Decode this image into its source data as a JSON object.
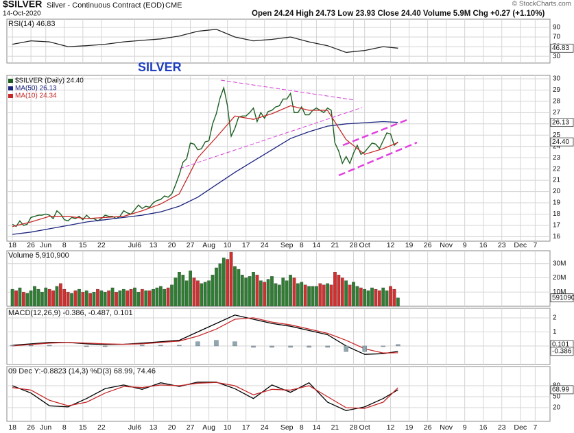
{
  "header": {
    "symbol": "$SILVER",
    "description": "Silver - Continuous Contract (EOD)",
    "exchange": "CME",
    "date": "14-Oct-2020",
    "quote": "Open 24.24  High 24.73  Low 23.93  Close 24.40  Volume 5.9M  Chg +0.27 (+1.10%)",
    "source": "© StockCharts.com"
  },
  "chart_data": [
    {
      "type": "line",
      "title": "RSI(14) 46.83",
      "ylim": [
        16,
        107
      ],
      "yticks": [
        30,
        50,
        70,
        90
      ],
      "series": [
        {
          "color": "#222222",
          "x": [
            0,
            5,
            10,
            15,
            20,
            25,
            30,
            35,
            40,
            45,
            50,
            55,
            60,
            65,
            70,
            75,
            80,
            85,
            90,
            95,
            100,
            104
          ],
          "values": [
            55,
            62,
            60,
            50,
            52,
            55,
            60,
            63,
            66,
            72,
            82,
            86,
            70,
            62,
            65,
            70,
            60,
            52,
            38,
            42,
            50,
            46.83
          ]
        }
      ],
      "tags": [
        {
          "value": 46.83,
          "label": "46.83"
        }
      ]
    },
    {
      "type": "line",
      "annotation": "SILVER",
      "ylim": [
        15.6,
        30.3
      ],
      "yticks": [
        16,
        17,
        18,
        19,
        20,
        21,
        22,
        23,
        24,
        25,
        26,
        27,
        28,
        29,
        30
      ],
      "xlim": [
        -1.5,
        145
      ],
      "xticks": [
        {
          "value": 0,
          "label": "18"
        },
        {
          "value": 5,
          "label": "26"
        },
        {
          "value": 9,
          "label": "Jun"
        },
        {
          "value": 14,
          "label": "8"
        },
        {
          "value": 19,
          "label": "15"
        },
        {
          "value": 24,
          "label": "22"
        },
        {
          "value": 33,
          "label": "Jul6"
        },
        {
          "value": 38,
          "label": "13"
        },
        {
          "value": 43,
          "label": "20"
        },
        {
          "value": 48,
          "label": "27"
        },
        {
          "value": 53,
          "label": "Aug"
        },
        {
          "value": 58,
          "label": "10"
        },
        {
          "value": 63,
          "label": "17"
        },
        {
          "value": 68,
          "label": "24"
        },
        {
          "value": 74,
          "label": "Sep"
        },
        {
          "value": 78,
          "label": "8"
        },
        {
          "value": 82,
          "label": "14"
        },
        {
          "value": 87,
          "label": "21"
        },
        {
          "value": 92,
          "label": "28"
        },
        {
          "value": 95,
          "label": "Oct"
        },
        {
          "value": 102,
          "label": "12"
        },
        {
          "value": 107,
          "label": "19"
        },
        {
          "value": 112,
          "label": "26"
        },
        {
          "value": 117,
          "label": "Nov"
        },
        {
          "value": 122,
          "label": "9"
        },
        {
          "value": 127,
          "label": "16"
        },
        {
          "value": 132,
          "label": "23"
        },
        {
          "value": 137,
          "label": "Dec"
        },
        {
          "value": 141,
          "label": "7"
        }
      ],
      "series": [
        {
          "name": "$SILVER (Daily) 24.40",
          "color": "#1b5e20",
          "values": [
            17.1,
            16.9,
            17.4,
            17.0,
            17.1,
            17.7,
            17.8,
            17.9,
            17.9,
            18.0,
            17.9,
            17.6,
            18.3,
            18.0,
            17.5,
            17.4,
            17.7,
            17.6,
            17.8,
            17.5,
            17.9,
            17.6,
            17.6,
            17.4,
            17.6,
            17.9,
            17.8,
            17.8,
            17.6,
            17.8,
            18.3,
            18.1,
            18.0,
            18.4,
            18.8,
            18.5,
            18.7,
            18.6,
            19.0,
            19.2,
            19.3,
            19.6,
            19.5,
            19.8,
            20.6,
            21.5,
            22.6,
            22.9,
            24.3,
            24.2,
            23.7,
            23.8,
            24.4,
            24.5,
            26.0,
            26.9,
            28.3,
            29.2,
            27.6,
            24.9,
            25.6,
            26.6,
            26.7,
            26.7,
            27.0,
            27.4,
            26.2,
            27.0,
            26.5,
            27.1,
            27.2,
            27.5,
            27.6,
            28.2,
            28.2,
            28.7,
            27.0,
            27.0,
            27.5,
            26.8,
            26.8,
            27.2,
            27.4,
            27.2,
            27.0,
            27.4,
            27.2,
            24.3,
            23.6,
            22.5,
            23.1,
            22.5,
            23.4,
            24.1,
            23.3,
            23.5,
            23.9,
            24.3,
            24.2,
            23.8,
            24.5,
            25.2,
            25.1,
            24.1,
            24.4
          ]
        },
        {
          "name": "MA(50) 26.13",
          "color": "#1a237e",
          "x": [
            0,
            5,
            10,
            15,
            20,
            25,
            30,
            35,
            40,
            45,
            50,
            55,
            60,
            65,
            70,
            75,
            80,
            85,
            90,
            95,
            100,
            104
          ],
          "values": [
            16.2,
            16.4,
            16.7,
            17.0,
            17.3,
            17.5,
            17.7,
            17.9,
            18.2,
            18.7,
            19.5,
            20.6,
            21.7,
            22.7,
            23.7,
            24.7,
            25.3,
            25.8,
            26.0,
            26.1,
            26.2,
            26.13
          ]
        },
        {
          "name": "MA(10) 24.34",
          "color": "#c62828",
          "x": [
            0,
            5,
            10,
            15,
            20,
            25,
            30,
            35,
            40,
            45,
            50,
            55,
            60,
            65,
            70,
            75,
            80,
            85,
            90,
            95,
            100,
            104
          ],
          "values": [
            16.9,
            17.3,
            17.8,
            17.8,
            17.6,
            17.7,
            17.8,
            18.3,
            18.9,
            19.8,
            23.0,
            24.8,
            26.7,
            26.4,
            26.9,
            27.6,
            27.2,
            27.2,
            24.6,
            23.3,
            23.8,
            24.34
          ]
        }
      ],
      "tags": [
        {
          "value": 26.13,
          "label": "26.13"
        },
        {
          "value": 24.4,
          "label": "24.40"
        }
      ]
    },
    {
      "type": "bar",
      "title": "Volume 5,910,900",
      "ylim": [
        0,
        39
      ],
      "up_color": "#2e7d32",
      "down_color": "#d32f2f",
      "yticks": [
        {
          "value": 10,
          "label": "10M"
        },
        {
          "value": 20,
          "label": "20M"
        },
        {
          "value": 30,
          "label": "30M"
        }
      ],
      "values": [
        12,
        11,
        13,
        10,
        9,
        11,
        14,
        12,
        10,
        13,
        12,
        11,
        14,
        16,
        12,
        10,
        9,
        11,
        12,
        10,
        11,
        9,
        10,
        12,
        11,
        10,
        11,
        13,
        10,
        11,
        12,
        11,
        12,
        13,
        10,
        12,
        11,
        11,
        12,
        13,
        14,
        12,
        13,
        15,
        20,
        24,
        22,
        18,
        25,
        20,
        18,
        16,
        17,
        18,
        22,
        27,
        30,
        34,
        33,
        38,
        28,
        26,
        22,
        20,
        21,
        24,
        22,
        18,
        17,
        19,
        21,
        16,
        15,
        20,
        18,
        22,
        20,
        16,
        17,
        15,
        14,
        14,
        14,
        16,
        15,
        16,
        15,
        24,
        22,
        20,
        18,
        15,
        17,
        14,
        13,
        12,
        11,
        13,
        12,
        11,
        13,
        11,
        14,
        12,
        5.9109
      ],
      "tags": [
        {
          "value": 5.9109,
          "label": "5910900"
        }
      ]
    },
    {
      "type": "line",
      "title": "MACD(12,26,9) -0.386, -0.487, 0.101",
      "ylim": [
        -1.32,
        2.68
      ],
      "yticks": [
        0,
        1,
        2
      ],
      "series": [
        {
          "color": "#000000",
          "x": [
            0,
            5,
            10,
            15,
            20,
            25,
            30,
            35,
            40,
            45,
            50,
            55,
            60,
            65,
            70,
            75,
            80,
            85,
            90,
            95,
            100,
            104
          ],
          "values": [
            0.05,
            0.15,
            0.25,
            0.25,
            0.15,
            0.1,
            0.12,
            0.2,
            0.3,
            0.4,
            1.0,
            1.6,
            2.2,
            1.9,
            1.6,
            1.4,
            1.1,
            0.8,
            0.0,
            -0.6,
            -0.55,
            -0.386
          ]
        },
        {
          "color": "#c62828",
          "x": [
            0,
            5,
            10,
            15,
            20,
            25,
            30,
            35,
            40,
            45,
            50,
            55,
            60,
            65,
            70,
            75,
            80,
            85,
            90,
            95,
            100,
            104
          ],
          "values": [
            0.0,
            0.1,
            0.2,
            0.25,
            0.2,
            0.15,
            0.12,
            0.15,
            0.25,
            0.35,
            0.7,
            1.2,
            1.9,
            2.0,
            1.7,
            1.5,
            1.2,
            0.9,
            0.4,
            -0.2,
            -0.5,
            -0.487
          ]
        },
        {
          "type": "bar",
          "color": "#8fa8b0",
          "x": [
            0,
            5,
            10,
            15,
            20,
            25,
            30,
            35,
            40,
            45,
            50,
            55,
            60,
            65,
            70,
            75,
            80,
            85,
            90,
            95,
            100,
            104
          ],
          "values": [
            0.05,
            0.05,
            0.05,
            0,
            -0.05,
            -0.05,
            0,
            0.05,
            0.05,
            0.05,
            0.3,
            0.4,
            0.3,
            -0.1,
            -0.1,
            -0.1,
            -0.1,
            -0.1,
            -0.4,
            -0.4,
            -0.05,
            0.101
          ]
        }
      ],
      "tags": [
        {
          "value": 0.101,
          "label": "0.101"
        },
        {
          "value": -0.386,
          "label": "-0.386"
        }
      ]
    },
    {
      "type": "line",
      "title": "09 Dec Y:-0.8823  (14,3) %D(3) 68.99, 74.46",
      "ylim": [
        -17.5,
        132.5
      ],
      "yticks": [
        20,
        50,
        80
      ],
      "series": [
        {
          "color": "#000000",
          "x": [
            0,
            5,
            10,
            15,
            20,
            25,
            30,
            35,
            40,
            45,
            50,
            55,
            60,
            65,
            70,
            75,
            80,
            85,
            90,
            95,
            100,
            104
          ],
          "values": [
            80,
            60,
            25,
            22,
            45,
            72,
            82,
            70,
            88,
            78,
            90,
            90,
            72,
            45,
            82,
            62,
            88,
            35,
            12,
            22,
            45,
            68.99
          ]
        },
        {
          "color": "#c62828",
          "x": [
            0,
            5,
            10,
            15,
            20,
            25,
            30,
            35,
            40,
            45,
            50,
            55,
            60,
            65,
            70,
            75,
            80,
            85,
            90,
            95,
            100,
            104
          ],
          "values": [
            75,
            68,
            40,
            25,
            35,
            60,
            78,
            75,
            82,
            80,
            87,
            89,
            80,
            55,
            70,
            68,
            80,
            50,
            20,
            18,
            35,
            74.46
          ]
        }
      ],
      "tags": [
        {
          "value": 68.99,
          "label": "68.99"
        }
      ]
    }
  ]
}
